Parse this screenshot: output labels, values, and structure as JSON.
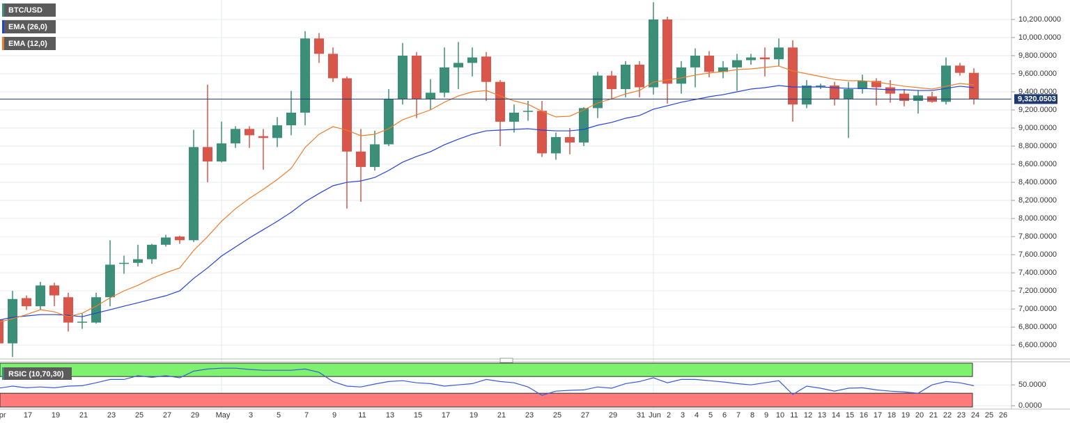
{
  "chart_data": [
    {
      "type": "candlestick",
      "title": "BTC/USD",
      "categories": [
        "Apr",
        null,
        "17",
        null,
        "19",
        null,
        "21",
        null,
        "23",
        null,
        "25",
        null,
        "27",
        null,
        "29",
        null,
        "May",
        null,
        "3",
        null,
        "5",
        null,
        "7",
        null,
        "9",
        null,
        "11",
        null,
        "13",
        null,
        "15",
        null,
        "17",
        null,
        "19",
        null,
        "21",
        null,
        "23",
        null,
        "25",
        null,
        "27",
        null,
        "29",
        null,
        "31",
        "Jun",
        "2",
        "3",
        "4",
        "5",
        "6",
        "7",
        "8",
        "9",
        "10",
        "11",
        "12",
        "13",
        "14",
        "15",
        "16",
        "17",
        "18",
        "19",
        "20",
        "21",
        "22",
        "23",
        "24",
        "25",
        "26"
      ],
      "open": [
        6880,
        6620,
        7120,
        7030,
        7260,
        7130,
        6850,
        6850,
        7130,
        7500,
        7510,
        7550,
        7710,
        7800,
        7760,
        8790,
        8630,
        8830,
        8990,
        8910,
        8890,
        9030,
        9170,
        9990,
        9820,
        9550,
        8740,
        8570,
        8820,
        9320,
        9800,
        9320,
        9390,
        9670,
        9720,
        9790,
        9510,
        9070,
        9180,
        9190,
        8720,
        8900,
        8840,
        9220,
        9580,
        9430,
        9700,
        9450,
        10200,
        9490,
        9670,
        9800,
        9620,
        9670,
        9750,
        9780,
        9760,
        9890,
        9260,
        9460,
        9470,
        9320,
        9430,
        9520,
        9450,
        9380,
        9300,
        9350,
        9290,
        9690,
        9610,
        null,
        null
      ],
      "high": [
        6900,
        7200,
        7150,
        7300,
        7290,
        7180,
        6950,
        7180,
        7760,
        7590,
        7710,
        7720,
        7820,
        7810,
        8980,
        9480,
        9070,
        9020,
        9020,
        8990,
        9120,
        9410,
        10070,
        10050,
        9890,
        9570,
        8990,
        8970,
        9430,
        9940,
        9840,
        9540,
        9890,
        9950,
        9890,
        9840,
        9530,
        9260,
        9300,
        9300,
        8950,
        9000,
        9230,
        9620,
        9630,
        9740,
        9740,
        10390,
        10230,
        9740,
        9880,
        9850,
        9740,
        9820,
        9820,
        9890,
        9990,
        9970,
        9530,
        9490,
        9510,
        9510,
        9590,
        9550,
        9530,
        9430,
        9420,
        9400,
        9780,
        9720,
        9660,
        null,
        null
      ],
      "low": [
        6600,
        6470,
        6990,
        6990,
        7030,
        6750,
        6780,
        6840,
        7030,
        7390,
        7470,
        7500,
        7690,
        7720,
        7740,
        8400,
        8620,
        8780,
        8780,
        8540,
        8790,
        8920,
        9030,
        9720,
        9510,
        8110,
        8185,
        8530,
        8800,
        9260,
        9110,
        9200,
        9340,
        9430,
        9570,
        9300,
        8800,
        8950,
        9080,
        8680,
        8650,
        8710,
        8800,
        9110,
        9320,
        9340,
        9340,
        9370,
        9270,
        9380,
        9450,
        9560,
        9550,
        9410,
        9700,
        9570,
        9680,
        9070,
        9220,
        9430,
        9250,
        8890,
        9380,
        9250,
        9280,
        9240,
        9160,
        9280,
        9260,
        9580,
        9260,
        null,
        null
      ],
      "close": [
        6620,
        7110,
        7030,
        7260,
        7150,
        6850,
        6860,
        7130,
        7490,
        7510,
        7550,
        7710,
        7790,
        7760,
        8790,
        8630,
        8830,
        8990,
        8920,
        8890,
        9030,
        9170,
        9990,
        9820,
        9550,
        8740,
        8570,
        8820,
        9320,
        9800,
        9320,
        9390,
        9670,
        9720,
        9780,
        9510,
        9070,
        9170,
        9190,
        8720,
        8900,
        8840,
        9220,
        9580,
        9430,
        9700,
        9450,
        10200,
        9490,
        9670,
        9800,
        9620,
        9670,
        9750,
        9780,
        9760,
        9890,
        9260,
        9470,
        9470,
        9320,
        9430,
        9520,
        9450,
        9380,
        9300,
        9360,
        9290,
        9690,
        9610,
        9320,
        null,
        null
      ],
      "up_color": "#3b8f79",
      "down_color": "#d9574a",
      "series": [
        {
          "name": "EMA (26,0)",
          "color": "#2442d6",
          "values": [
            6877,
            6908,
            6923,
            6938,
            6938,
            6931,
            6915,
            6954,
            6992,
            7031,
            7069,
            7108,
            7146,
            7200,
            7338,
            7454,
            7585,
            7685,
            7785,
            7877,
            7969,
            8069,
            8185,
            8277,
            8362,
            8400,
            8415,
            8454,
            8531,
            8623,
            8685,
            8738,
            8815,
            8877,
            8931,
            8969,
            8977,
            8985,
            8992,
            8977,
            8969,
            8969,
            8985,
            9031,
            9062,
            9108,
            9138,
            9208,
            9246,
            9285,
            9315,
            9346,
            9369,
            9400,
            9431,
            9446,
            9469,
            9454,
            9454,
            9454,
            9446,
            9438,
            9438,
            9431,
            9423,
            9423,
            9415,
            9415,
            9438,
            9462,
            9446,
            null,
            null
          ]
        },
        {
          "name": "EMA (12,0)",
          "color": "#ee7d2a",
          "values": [
            6854,
            6892,
            6938,
            6992,
            6969,
            6915,
            6954,
            7031,
            7123,
            7200,
            7262,
            7338,
            7400,
            7454,
            7646,
            7800,
            7969,
            8108,
            8223,
            8323,
            8431,
            8554,
            8785,
            8931,
            9015,
            8977,
            8915,
            8931,
            8992,
            9092,
            9146,
            9200,
            9285,
            9354,
            9400,
            9415,
            9354,
            9300,
            9262,
            9185,
            9123,
            9131,
            9200,
            9277,
            9323,
            9377,
            9415,
            9508,
            9531,
            9554,
            9585,
            9608,
            9623,
            9646,
            9654,
            9669,
            9685,
            9631,
            9600,
            9569,
            9538,
            9523,
            9523,
            9508,
            9485,
            9462,
            9446,
            9431,
            9462,
            9492,
            9477,
            null,
            null
          ]
        }
      ],
      "current_price": {
        "value": 9320.0503,
        "label": "9,320.0503"
      },
      "ylim": [
        6455,
        10415
      ],
      "yticks": [
        {
          "value": 6600,
          "label": "6,600.0000"
        },
        {
          "value": 6800,
          "label": "6,800.0000"
        },
        {
          "value": 7000,
          "label": "7,000.0000"
        },
        {
          "value": 7200,
          "label": "7,200.0000"
        },
        {
          "value": 7400,
          "label": "7,400.0000"
        },
        {
          "value": 7600,
          "label": "7,600.0000"
        },
        {
          "value": 7800,
          "label": "7,800.0000"
        },
        {
          "value": 8000,
          "label": "8,000.0000"
        },
        {
          "value": 8200,
          "label": "8,200.0000"
        },
        {
          "value": 8400,
          "label": "8,400.0000"
        },
        {
          "value": 8600,
          "label": "8,600.0000"
        },
        {
          "value": 8800,
          "label": "8,800.0000"
        },
        {
          "value": 9000,
          "label": "9,000.0000"
        },
        {
          "value": 9200,
          "label": "9,200.0000"
        },
        {
          "value": 9400,
          "label": "9,400.0000"
        },
        {
          "value": 9600,
          "label": "9,600.0000"
        },
        {
          "value": 9800,
          "label": "9,800.0000"
        },
        {
          "value": 10000,
          "label": "10,000.0000"
        },
        {
          "value": 10200,
          "label": "10,200.0000"
        }
      ],
      "grid": true
    },
    {
      "type": "line",
      "title": "RSIC (10,70,30)",
      "color": "#3a5bd6",
      "values": [
        42,
        47,
        43,
        45,
        43,
        47,
        48,
        55,
        63,
        63,
        72,
        68,
        72,
        67,
        83,
        88,
        90,
        90,
        87,
        85,
        85,
        85,
        88,
        80,
        58,
        47,
        45,
        52,
        58,
        60,
        55,
        53,
        47,
        50,
        53,
        63,
        58,
        55,
        45,
        25,
        35,
        37,
        38,
        45,
        42,
        53,
        58,
        67,
        55,
        63,
        63,
        60,
        57,
        53,
        50,
        55,
        60,
        27,
        47,
        42,
        35,
        42,
        43,
        38,
        35,
        33,
        30,
        50,
        58,
        55,
        48,
        null,
        null
      ],
      "upper_band": 70,
      "lower_band": 30,
      "upper_color": "#7ef26e",
      "lower_color": "#ff7b7b",
      "ylim": [
        -3,
        102
      ],
      "yticks": [
        {
          "value": 50,
          "label": "50.0000"
        },
        {
          "value": 0,
          "label": "0.0000"
        }
      ],
      "grid": true
    }
  ]
}
